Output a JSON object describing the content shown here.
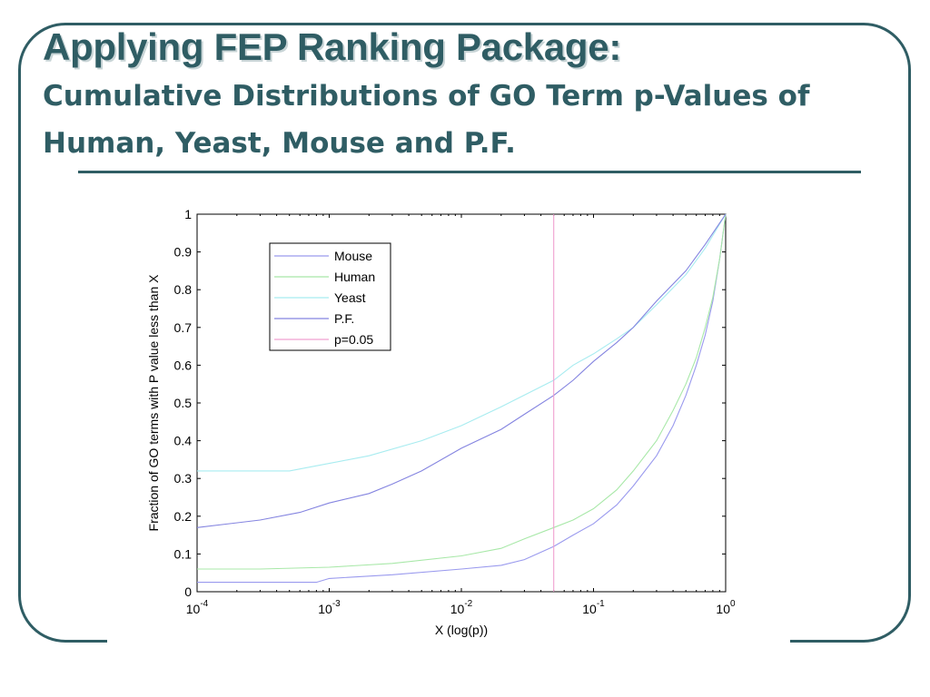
{
  "slide": {
    "title": "Applying FEP Ranking Package:",
    "subtitle": "Cumulative Distributions of GO Term p-Values of Human, Yeast, Mouse and P.F."
  },
  "colors": {
    "frame": "#2f5d64",
    "title": "#2f5d64"
  },
  "chart_data": {
    "type": "line",
    "xscale": "log",
    "xlabel": "X (log(p))",
    "ylabel": "Fraction of GO terms with P value less than X",
    "xlim": [
      0.0001,
      1
    ],
    "ylim": [
      0,
      1
    ],
    "x_ticks": [
      {
        "base": "10",
        "exp": "-4",
        "value": 0.0001
      },
      {
        "base": "10",
        "exp": "-3",
        "value": 0.001
      },
      {
        "base": "10",
        "exp": "-2",
        "value": 0.01
      },
      {
        "base": "10",
        "exp": "-1",
        "value": 0.1
      },
      {
        "base": "10",
        "exp": "0",
        "value": 1
      }
    ],
    "y_ticks": [
      "0",
      "0.1",
      "0.2",
      "0.3",
      "0.4",
      "0.5",
      "0.6",
      "0.7",
      "0.8",
      "0.9",
      "1"
    ],
    "legend_position": "top-left",
    "series": [
      {
        "name": "Mouse",
        "color": "#9a9aee",
        "x": [
          0.0001,
          0.0008,
          0.001,
          0.003,
          0.01,
          0.02,
          0.03,
          0.05,
          0.07,
          0.1,
          0.15,
          0.2,
          0.3,
          0.4,
          0.5,
          0.6,
          0.7,
          0.8,
          0.9,
          1
        ],
        "y": [
          0.025,
          0.025,
          0.035,
          0.045,
          0.06,
          0.07,
          0.085,
          0.12,
          0.15,
          0.18,
          0.23,
          0.28,
          0.36,
          0.44,
          0.52,
          0.6,
          0.68,
          0.77,
          0.88,
          1.0
        ]
      },
      {
        "name": "Human",
        "color": "#a8e8a8",
        "x": [
          0.0001,
          0.0003,
          0.001,
          0.003,
          0.01,
          0.02,
          0.03,
          0.05,
          0.07,
          0.1,
          0.15,
          0.2,
          0.3,
          0.4,
          0.5,
          0.6,
          0.7,
          0.8,
          0.9,
          1
        ],
        "y": [
          0.06,
          0.06,
          0.065,
          0.075,
          0.095,
          0.115,
          0.14,
          0.17,
          0.19,
          0.22,
          0.27,
          0.32,
          0.4,
          0.48,
          0.55,
          0.62,
          0.7,
          0.78,
          0.88,
          1.0
        ]
      },
      {
        "name": "Yeast",
        "color": "#a8ecf0",
        "x": [
          0.0001,
          0.0005,
          0.001,
          0.002,
          0.005,
          0.01,
          0.02,
          0.05,
          0.07,
          0.1,
          0.15,
          0.2,
          0.3,
          0.5,
          0.7,
          1
        ],
        "y": [
          0.32,
          0.32,
          0.34,
          0.36,
          0.4,
          0.44,
          0.49,
          0.56,
          0.6,
          0.63,
          0.67,
          0.7,
          0.76,
          0.84,
          0.91,
          1.0
        ]
      },
      {
        "name": "P.F.",
        "color": "#8484e0",
        "x": [
          0.0001,
          0.0003,
          0.0006,
          0.001,
          0.002,
          0.003,
          0.005,
          0.01,
          0.02,
          0.03,
          0.05,
          0.07,
          0.1,
          0.15,
          0.2,
          0.3,
          0.5,
          0.7,
          1
        ],
        "y": [
          0.17,
          0.19,
          0.21,
          0.235,
          0.26,
          0.285,
          0.32,
          0.38,
          0.43,
          0.47,
          0.52,
          0.56,
          0.61,
          0.66,
          0.7,
          0.77,
          0.85,
          0.92,
          1.0
        ]
      },
      {
        "name": "p=0.05",
        "color": "#f0a0d0",
        "x": [
          0.05,
          0.05
        ],
        "y": [
          0,
          1
        ]
      }
    ]
  }
}
